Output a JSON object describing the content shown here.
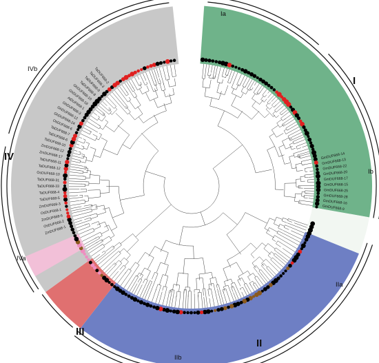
{
  "figure": {
    "type": "circular-phylogenetic-tree",
    "colors": {
      "I": "#6fb38a",
      "II": "#6e7fc4",
      "III": "#e07070",
      "IV": "#c8c8c8",
      "branch": "#3a3a3a",
      "marker_black": "#000000",
      "marker_red": "#e02020",
      "marker_brown": "#8b5a1e",
      "marker_pink": "#ee8ec0"
    },
    "clades": [
      {
        "id": "I",
        "label": "I",
        "subclades": [
          {
            "id": "Ia",
            "label": "Ia"
          },
          {
            "id": "Ib",
            "label": "Ib"
          }
        ]
      },
      {
        "id": "II",
        "label": "II",
        "subclades": [
          {
            "id": "IIa",
            "label": "IIa"
          },
          {
            "id": "IIb",
            "label": "IIb"
          }
        ]
      },
      {
        "id": "III",
        "label": "III",
        "subclades": []
      },
      {
        "id": "IV",
        "label": "IV",
        "subclades": [
          {
            "id": "IVa",
            "label": "IVa"
          },
          {
            "id": "IVb",
            "label": "IVb"
          }
        ]
      }
    ],
    "leaves_visible": [
      "GmDUF668-14",
      "GmDUF668-13",
      "GmDUF668-22",
      "GmDUF668-20",
      "GmDUF668-17",
      "GmDUF668-15",
      "GmDUF668-25",
      "GmDUF668-28",
      "GmDUF668-16",
      "GmDUF668-9",
      "ZmDUF668-1",
      "OsDUF668-2",
      "ZmDUF668-6",
      "OsDUF668-1",
      "ZmDUF668-3",
      "TaDUF668-5",
      "TaDUF668-4",
      "TaDUF668-33",
      "TaDUF668-31",
      "OsDUF668-10",
      "TaDUF668-12",
      "TaDUF668-11",
      "ZmDUF668-17",
      "ZmDUF668-12",
      "TaDUF668-10",
      "TaDUF668-6",
      "TaDUF668-7",
      "OsDUF668-6",
      "GhDUF668-24",
      "GhDUF668-12",
      "GhDUF668-3",
      "AtDUF668-1",
      "GhDUF668-18",
      "GhDUF668-10",
      "TaDUF668-8",
      "TaDUF668-9",
      "TaDUF668-3",
      "TaDUF668-2"
    ]
  }
}
